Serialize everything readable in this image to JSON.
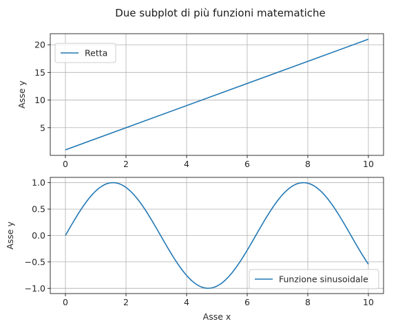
{
  "title": "Due subplot di più funzioni matematiche",
  "colors": {
    "line": "#1f77b4",
    "grid": "#b0b0b0"
  },
  "chart_data": [
    {
      "type": "line",
      "ylabel": "Asse y",
      "xlabel": "",
      "legend": {
        "position": "upper-left",
        "entries": [
          "Retta"
        ]
      },
      "grid": true,
      "xlim": [
        -0.5,
        10.5
      ],
      "ylim": [
        0.0,
        22.0
      ],
      "xticks": [
        0,
        2,
        4,
        6,
        8,
        10
      ],
      "yticks": [
        5,
        10,
        15,
        20
      ],
      "xtick_labels": [
        "0",
        "2",
        "4",
        "6",
        "8",
        "10"
      ],
      "ytick_labels": [
        "5",
        "10",
        "15",
        "20"
      ],
      "series": [
        {
          "name": "Retta",
          "x": [
            0,
            10
          ],
          "y": [
            1,
            21
          ]
        }
      ]
    },
    {
      "type": "line",
      "ylabel": "Asse y",
      "xlabel": "Asse x",
      "legend": {
        "position": "lower-right",
        "entries": [
          "Funzione sinusoidale"
        ]
      },
      "grid": true,
      "xlim": [
        -0.5,
        10.5
      ],
      "ylim": [
        -1.1,
        1.1
      ],
      "xticks": [
        0,
        2,
        4,
        6,
        8,
        10
      ],
      "yticks": [
        -1.0,
        -0.5,
        0.0,
        0.5,
        1.0
      ],
      "xtick_labels": [
        "0",
        "2",
        "4",
        "6",
        "8",
        "10"
      ],
      "ytick_labels": [
        "−1.0",
        "−0.5",
        "0.0",
        "0.5",
        "1.0"
      ],
      "series": [
        {
          "name": "Funzione sinusoidale",
          "x": [
            0,
            0.5,
            1,
            1.5,
            1.57,
            2,
            2.5,
            3,
            3.5,
            4,
            4.5,
            4.71,
            5,
            5.5,
            6,
            6.5,
            7,
            7.5,
            7.85,
            8,
            8.5,
            9,
            9.5,
            10
          ],
          "y": [
            0,
            0.479,
            0.841,
            0.997,
            1.0,
            0.909,
            0.598,
            0.141,
            -0.351,
            -0.757,
            -0.978,
            -1.0,
            -0.959,
            -0.706,
            -0.279,
            0.215,
            0.657,
            0.938,
            1.0,
            0.989,
            0.798,
            0.412,
            -0.075,
            -0.544
          ]
        }
      ]
    }
  ]
}
